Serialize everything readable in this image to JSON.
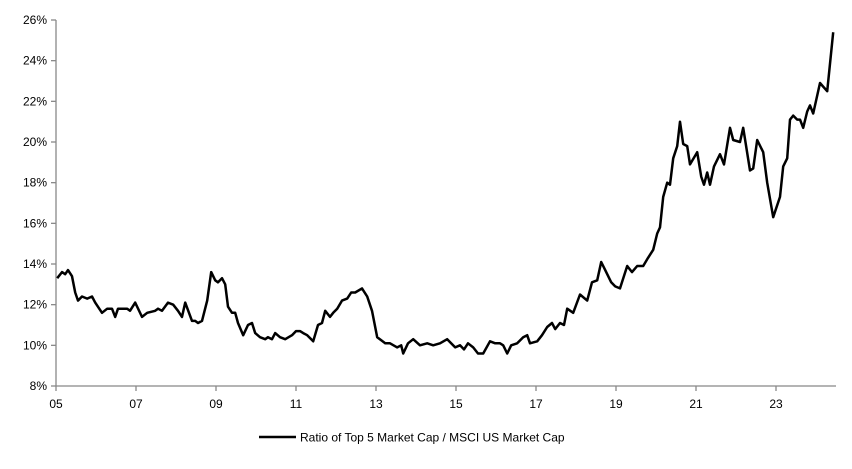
{
  "chart_data": {
    "type": "line",
    "title": "",
    "xlabel": "",
    "ylabel": "",
    "xlim": [
      2005,
      2024.5
    ],
    "ylim": [
      8,
      26
    ],
    "grid": false,
    "legend_position": "bottom",
    "line_color": "#000000",
    "y_ticks": [
      8,
      10,
      12,
      14,
      16,
      18,
      20,
      22,
      24,
      26
    ],
    "y_tick_labels": [
      "8%",
      "10%",
      "12%",
      "14%",
      "16%",
      "18%",
      "20%",
      "22%",
      "24%",
      "26%"
    ],
    "x_ticks": [
      2005,
      2007,
      2009,
      2011,
      2013,
      2015,
      2017,
      2019,
      2021,
      2023
    ],
    "x_tick_labels": [
      "05",
      "07",
      "09",
      "11",
      "13",
      "15",
      "17",
      "19",
      "21",
      "23"
    ],
    "series": [
      {
        "name": "Ratio of Top 5 Market Cap / MSCI US Market Cap",
        "x": [
          2005.03,
          2005.15,
          2005.23,
          2005.3,
          2005.4,
          2005.48,
          2005.55,
          2005.65,
          2005.78,
          2005.9,
          2005.98,
          2006.15,
          2006.28,
          2006.4,
          2006.48,
          2006.55,
          2006.78,
          2006.85,
          2006.98,
          2007.15,
          2007.28,
          2007.48,
          2007.55,
          2007.65,
          2007.8,
          2007.93,
          2008.05,
          2008.15,
          2008.23,
          2008.4,
          2008.48,
          2008.55,
          2008.65,
          2008.78,
          2008.88,
          2008.98,
          2009.05,
          2009.15,
          2009.23,
          2009.3,
          2009.4,
          2009.48,
          2009.55,
          2009.68,
          2009.8,
          2009.9,
          2009.98,
          2010.1,
          2010.23,
          2010.3,
          2010.4,
          2010.48,
          2010.6,
          2010.73,
          2010.9,
          2011.0,
          2011.1,
          2011.18,
          2011.28,
          2011.43,
          2011.55,
          2011.65,
          2011.73,
          2011.85,
          2011.93,
          2012.03,
          2012.15,
          2012.28,
          2012.38,
          2012.48,
          2012.65,
          2012.78,
          2012.9,
          2013.03,
          2013.23,
          2013.35,
          2013.53,
          2013.63,
          2013.68,
          2013.8,
          2013.93,
          2014.1,
          2014.28,
          2014.43,
          2014.6,
          2014.78,
          2014.98,
          2015.1,
          2015.2,
          2015.3,
          2015.43,
          2015.55,
          2015.68,
          2015.85,
          2015.98,
          2016.1,
          2016.18,
          2016.28,
          2016.38,
          2016.53,
          2016.68,
          2016.78,
          2016.85,
          2017.03,
          2017.15,
          2017.28,
          2017.4,
          2017.48,
          2017.6,
          2017.7,
          2017.78,
          2017.93,
          2018.1,
          2018.28,
          2018.4,
          2018.53,
          2018.63,
          2018.73,
          2018.88,
          2018.98,
          2019.1,
          2019.28,
          2019.4,
          2019.53,
          2019.68,
          2019.8,
          2019.93,
          2020.03,
          2020.1,
          2020.18,
          2020.28,
          2020.35,
          2020.43,
          2020.53,
          2020.6,
          2020.68,
          2020.78,
          2020.85,
          2021.03,
          2021.13,
          2021.2,
          2021.28,
          2021.35,
          2021.45,
          2021.6,
          2021.7,
          2021.85,
          2021.93,
          2022.1,
          2022.18,
          2022.35,
          2022.43,
          2022.53,
          2022.68,
          2022.78,
          2022.93,
          2023.1,
          2023.18,
          2023.28,
          2023.35,
          2023.43,
          2023.53,
          2023.6,
          2023.68,
          2023.78,
          2023.85,
          2023.93,
          2024.1,
          2024.28,
          2024.43
        ],
        "y": [
          13.3,
          13.6,
          13.5,
          13.7,
          13.4,
          12.6,
          12.2,
          12.4,
          12.3,
          12.4,
          12.1,
          11.6,
          11.8,
          11.8,
          11.4,
          11.8,
          11.8,
          11.7,
          12.1,
          11.4,
          11.6,
          11.7,
          11.8,
          11.7,
          12.1,
          12.0,
          11.7,
          11.4,
          12.1,
          11.2,
          11.2,
          11.1,
          11.2,
          12.2,
          13.6,
          13.2,
          13.1,
          13.3,
          13.0,
          11.9,
          11.6,
          11.6,
          11.1,
          10.5,
          11.0,
          11.1,
          10.6,
          10.4,
          10.3,
          10.4,
          10.3,
          10.6,
          10.4,
          10.3,
          10.5,
          10.7,
          10.7,
          10.6,
          10.5,
          10.2,
          11.0,
          11.1,
          11.7,
          11.4,
          11.6,
          11.8,
          12.2,
          12.3,
          12.6,
          12.6,
          12.8,
          12.4,
          11.7,
          10.4,
          10.1,
          10.1,
          9.9,
          10.0,
          9.6,
          10.1,
          10.3,
          10.0,
          10.1,
          10.0,
          10.1,
          10.3,
          9.9,
          10.0,
          9.8,
          10.1,
          9.9,
          9.6,
          9.6,
          10.2,
          10.1,
          10.1,
          10.0,
          9.6,
          10.0,
          10.1,
          10.4,
          10.5,
          10.1,
          10.2,
          10.5,
          10.9,
          11.1,
          10.8,
          11.1,
          11.0,
          11.8,
          11.6,
          12.5,
          12.2,
          13.1,
          13.2,
          14.1,
          13.7,
          13.1,
          12.9,
          12.8,
          13.9,
          13.6,
          13.9,
          13.9,
          14.3,
          14.7,
          15.5,
          15.8,
          17.3,
          18.0,
          17.9,
          19.2,
          19.8,
          21.0,
          19.9,
          19.8,
          18.9,
          19.5,
          18.3,
          17.9,
          18.5,
          17.9,
          18.8,
          19.4,
          18.9,
          20.7,
          20.1,
          20.0,
          20.7,
          18.6,
          18.7,
          20.1,
          19.5,
          18.0,
          16.3,
          17.3,
          18.8,
          19.2,
          21.1,
          21.3,
          21.1,
          21.1,
          20.7,
          21.5,
          21.8,
          21.4,
          22.9,
          22.5,
          25.4
        ]
      }
    ]
  }
}
